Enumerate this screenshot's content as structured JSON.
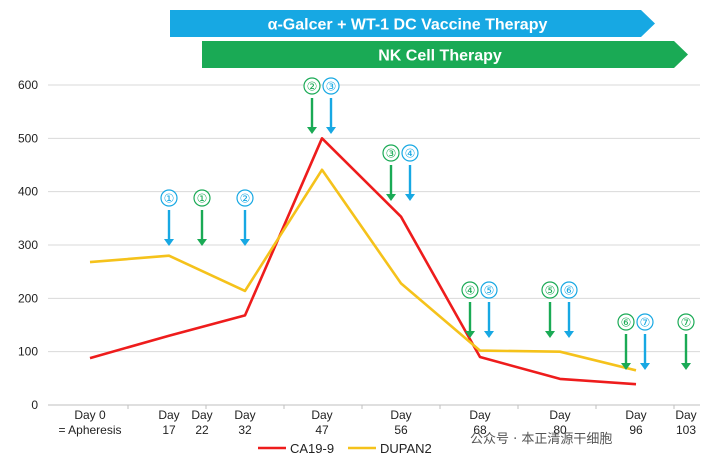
{
  "chart_data": {
    "type": "line",
    "title": "",
    "xlabel": "",
    "ylabel": "",
    "ylim": [
      0,
      600
    ],
    "yticks": [
      0,
      100,
      200,
      300,
      400,
      500,
      600
    ],
    "grid": true,
    "legend_position": "bottom",
    "x_labels": [
      {
        "day": 0,
        "lines": [
          "Day 0",
          "= Apheresis"
        ]
      },
      {
        "day": 17,
        "lines": [
          "Day",
          "17"
        ]
      },
      {
        "day": 22,
        "lines": [
          "Day",
          "22"
        ]
      },
      {
        "day": 32,
        "lines": [
          "Day",
          "32"
        ]
      },
      {
        "day": 47,
        "lines": [
          "Day",
          "47"
        ]
      },
      {
        "day": 56,
        "lines": [
          "Day",
          "56"
        ]
      },
      {
        "day": 68,
        "lines": [
          "Day",
          "68"
        ]
      },
      {
        "day": 80,
        "lines": [
          "Day",
          "80"
        ]
      },
      {
        "day": 96,
        "lines": [
          "Day",
          "96"
        ]
      },
      {
        "day": 103,
        "lines": [
          "Day",
          "103"
        ]
      }
    ],
    "series": [
      {
        "name": "CA19-9",
        "color": "#ee1c1c",
        "points": [
          [
            0,
            88
          ],
          [
            17,
            130
          ],
          [
            32,
            168
          ],
          [
            47,
            500
          ],
          [
            56,
            353
          ],
          [
            68,
            90
          ],
          [
            80,
            49
          ],
          [
            96,
            39
          ]
        ]
      },
      {
        "name": "DUPAN2",
        "color": "#f5c21b",
        "points": [
          [
            0,
            268
          ],
          [
            17,
            280
          ],
          [
            32,
            214
          ],
          [
            47,
            441
          ],
          [
            56,
            228
          ],
          [
            68,
            102
          ],
          [
            80,
            100
          ],
          [
            96,
            65
          ]
        ]
      }
    ],
    "therapies": [
      {
        "name": "α-Galcer + WT-1 DC Vaccine Therapy",
        "color": "#17a8e3",
        "doses": [
          {
            "label": "①",
            "day": 17,
            "level": 1
          },
          {
            "label": "②",
            "day": 32,
            "level": 1
          },
          {
            "label": "③",
            "day": 47,
            "level": 0
          },
          {
            "label": "④",
            "day": 56,
            "level": 2
          },
          {
            "label": "⑤",
            "day": 68,
            "level": 3
          },
          {
            "label": "⑥",
            "day": 80,
            "level": 3
          },
          {
            "label": "⑦",
            "day": 96,
            "level": 4
          }
        ]
      },
      {
        "name": "NK Cell Therapy",
        "color": "#1aaa55",
        "doses": [
          {
            "label": "①",
            "day": 22,
            "level": 1
          },
          {
            "label": "②",
            "day": 47,
            "level": 0
          },
          {
            "label": "③",
            "day": 56,
            "level": 2
          },
          {
            "label": "④",
            "day": 68,
            "level": 3
          },
          {
            "label": "⑤",
            "day": 80,
            "level": 3
          },
          {
            "label": "⑥",
            "day": 96,
            "level": 4
          },
          {
            "label": "⑦",
            "day": 103,
            "level": 4
          }
        ]
      }
    ]
  },
  "watermark": "公众号 · 本正清源干细胞"
}
